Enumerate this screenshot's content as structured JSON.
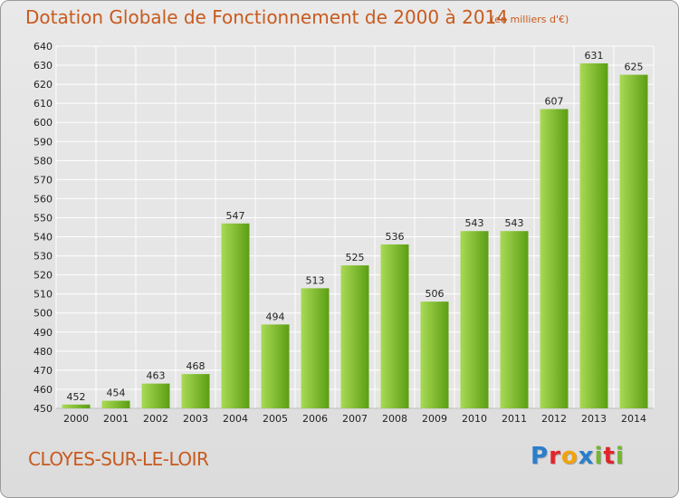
{
  "header": {
    "title": "Dotation Globale de Fonctionnement de 2000 à 2014",
    "subtitle": "(en milliers d'€)"
  },
  "footer": {
    "city": "CLOYES-SUR-LE-LOIR",
    "logo_letters": [
      "P",
      "r",
      "o",
      "x",
      "i",
      "t",
      "i"
    ],
    "logo_colors": [
      "#2a7ecb",
      "#e2252b",
      "#f1a20c",
      "#2a7ecb",
      "#74b72e",
      "#e2252b",
      "#74b72e"
    ]
  },
  "colors": {
    "bar_light": "#a9da55",
    "bar_dark": "#5b9e13",
    "title": "#c85a1e",
    "grid": "#ffffff"
  },
  "chart_data": {
    "type": "bar",
    "title": "Dotation Globale de Fonctionnement de 2000 à 2014",
    "subtitle": "(en milliers d'€)",
    "categories": [
      "2000",
      "2001",
      "2002",
      "2003",
      "2004",
      "2005",
      "2006",
      "2007",
      "2008",
      "2009",
      "2010",
      "2011",
      "2012",
      "2013",
      "2014"
    ],
    "values": [
      452,
      454,
      463,
      468,
      547,
      494,
      513,
      525,
      536,
      506,
      543,
      543,
      607,
      631,
      625
    ],
    "ylim": [
      450,
      640
    ],
    "yticks": [
      450,
      460,
      470,
      480,
      490,
      500,
      510,
      520,
      530,
      540,
      550,
      560,
      570,
      580,
      590,
      600,
      610,
      620,
      630,
      640
    ],
    "grid": true,
    "legend": "none"
  }
}
